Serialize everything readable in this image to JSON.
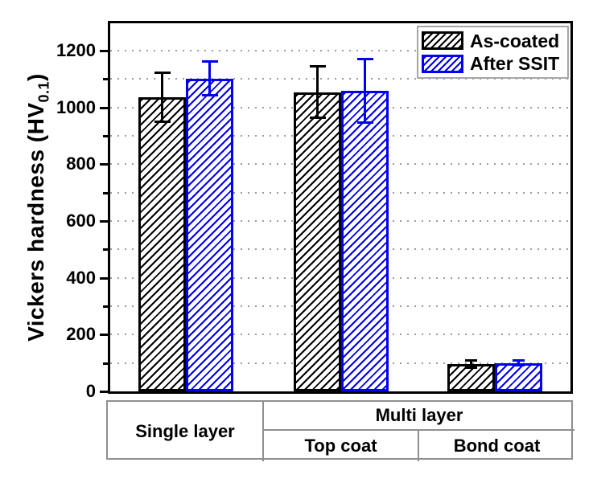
{
  "chart_data": {
    "type": "bar",
    "title": "",
    "ylabel_prefix": "Vickers hardness (HV",
    "ylabel_sub": "0.1",
    "ylabel_suffix": ")",
    "ylim": [
      0,
      1300
    ],
    "yticks_major": [
      0,
      200,
      400,
      600,
      800,
      1000,
      1200
    ],
    "yticks_minor": [
      100,
      300,
      500,
      700,
      900,
      1100
    ],
    "gridlines": [
      100,
      200,
      300,
      400,
      500,
      600,
      700,
      800,
      900,
      1000,
      1100,
      1200
    ],
    "grid_style": "dotted",
    "legend_position": "top-right",
    "categories": [
      "Single layer",
      "Multi layer - Top coat",
      "Multi layer - Bond coat"
    ],
    "series": [
      {
        "name": "As-coated",
        "color": "#000000",
        "values": [
          1035,
          1053,
          95
        ],
        "errors": [
          90,
          95,
          17
        ]
      },
      {
        "name": "After SSIT",
        "color": "#0000ee",
        "values": [
          1102,
          1058,
          100
        ],
        "errors": [
          63,
          116,
          13
        ]
      }
    ]
  },
  "legend": {
    "items": [
      {
        "label": "As-coated",
        "color": "#000000"
      },
      {
        "label": "After SSIT",
        "color": "#0000ee"
      }
    ]
  },
  "axis_table": {
    "single_label": "Single layer",
    "multi_label": "Multi layer",
    "top_coat_label": "Top coat",
    "bond_coat_label": "Bond coat"
  },
  "colors": {
    "as_coated": "#000000",
    "after_ssit": "#0000ee",
    "gridline": "#9b9b9b",
    "table_border": "#8f8f8f"
  }
}
